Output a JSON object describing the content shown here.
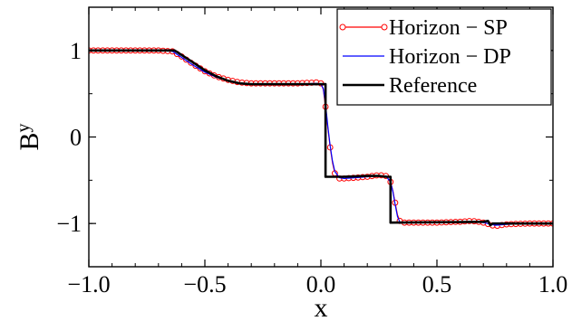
{
  "chart_data": {
    "type": "line",
    "xlabel": "x",
    "ylabel": "By",
    "ylabel_base": "B",
    "ylabel_sup": "y",
    "xlim": [
      -1.0,
      1.0
    ],
    "ylim": [
      -1.5,
      1.5
    ],
    "xticks": [
      -1.0,
      -0.5,
      0.0,
      0.5,
      1.0
    ],
    "xtick_labels": [
      "−1.0",
      "−0.5",
      "0.0",
      "0.5",
      "1.0"
    ],
    "yticks": [
      -1,
      0,
      1
    ],
    "ytick_labels": [
      "−1",
      "0",
      "1"
    ],
    "grid": false,
    "legend_position": "top-right",
    "series": [
      {
        "name": "Horizon − SP",
        "color": "#ff0000",
        "style": "line-with-open-circles",
        "x": [
          -1.0,
          -0.9,
          -0.8,
          -0.7,
          -0.64,
          -0.6,
          -0.55,
          -0.5,
          -0.45,
          -0.4,
          -0.35,
          -0.3,
          -0.2,
          -0.1,
          -0.02,
          0.0,
          0.01,
          0.02,
          0.03,
          0.04,
          0.05,
          0.06,
          0.08,
          0.1,
          0.15,
          0.2,
          0.25,
          0.28,
          0.3,
          0.31,
          0.32,
          0.33,
          0.34,
          0.35,
          0.4,
          0.5,
          0.6,
          0.65,
          0.7,
          0.75,
          0.8,
          0.9,
          1.0
        ],
        "y": [
          1.0,
          1.0,
          1.0,
          1.0,
          0.99,
          0.93,
          0.84,
          0.76,
          0.7,
          0.66,
          0.63,
          0.62,
          0.62,
          0.62,
          0.63,
          0.62,
          0.55,
          0.35,
          0.1,
          -0.12,
          -0.3,
          -0.42,
          -0.48,
          -0.48,
          -0.47,
          -0.46,
          -0.44,
          -0.45,
          -0.52,
          -0.62,
          -0.76,
          -0.9,
          -0.97,
          -0.99,
          -0.99,
          -0.99,
          -0.98,
          -0.97,
          -0.99,
          -1.03,
          -1.01,
          -1.0,
          -1.0
        ]
      },
      {
        "name": "Horizon − DP",
        "color": "#0000ff",
        "style": "line",
        "x": [
          -1.0,
          -0.9,
          -0.8,
          -0.7,
          -0.64,
          -0.6,
          -0.55,
          -0.5,
          -0.45,
          -0.4,
          -0.35,
          -0.3,
          -0.2,
          -0.1,
          -0.02,
          0.0,
          0.01,
          0.02,
          0.03,
          0.04,
          0.05,
          0.06,
          0.08,
          0.1,
          0.15,
          0.2,
          0.25,
          0.28,
          0.3,
          0.31,
          0.32,
          0.33,
          0.34,
          0.35,
          0.4,
          0.5,
          0.6,
          0.65,
          0.7,
          0.75,
          0.8,
          0.9,
          1.0
        ],
        "y": [
          1.0,
          1.0,
          1.0,
          1.0,
          0.99,
          0.92,
          0.83,
          0.75,
          0.69,
          0.65,
          0.62,
          0.61,
          0.61,
          0.61,
          0.62,
          0.61,
          0.56,
          0.38,
          0.12,
          -0.1,
          -0.28,
          -0.4,
          -0.47,
          -0.48,
          -0.47,
          -0.46,
          -0.45,
          -0.45,
          -0.52,
          -0.63,
          -0.78,
          -0.92,
          -0.98,
          -0.99,
          -0.99,
          -0.99,
          -0.98,
          -0.98,
          -0.99,
          -1.02,
          -1.01,
          -1.0,
          -1.0
        ]
      },
      {
        "name": "Reference",
        "color": "#000000",
        "style": "thick-line",
        "x": [
          -1.0,
          -0.63,
          -0.55,
          -0.5,
          -0.45,
          -0.4,
          -0.35,
          -0.3,
          0.02,
          0.02,
          0.1,
          0.2,
          0.25,
          0.28,
          0.3,
          0.3,
          0.7,
          0.72,
          0.73,
          0.74,
          1.0
        ],
        "y": [
          1.0,
          1.0,
          0.86,
          0.77,
          0.7,
          0.65,
          0.62,
          0.61,
          0.61,
          -0.46,
          -0.46,
          -0.45,
          -0.45,
          -0.46,
          -0.46,
          -0.99,
          -0.98,
          -0.97,
          -1.02,
          -1.0,
          -1.0
        ]
      }
    ]
  }
}
